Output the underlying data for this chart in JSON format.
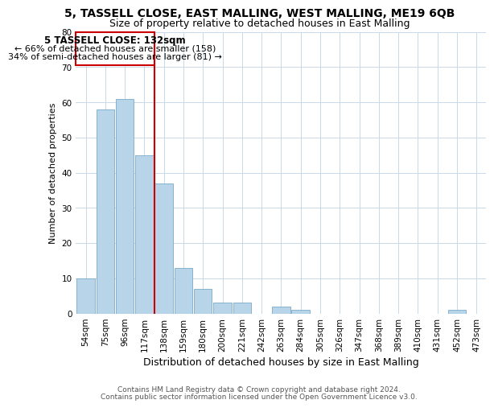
{
  "title": "5, TASSELL CLOSE, EAST MALLING, WEST MALLING, ME19 6QB",
  "subtitle": "Size of property relative to detached houses in East Malling",
  "xlabel": "Distribution of detached houses by size in East Malling",
  "ylabel": "Number of detached properties",
  "bar_labels": [
    "54sqm",
    "75sqm",
    "96sqm",
    "117sqm",
    "138sqm",
    "159sqm",
    "180sqm",
    "200sqm",
    "221sqm",
    "242sqm",
    "263sqm",
    "284sqm",
    "305sqm",
    "326sqm",
    "347sqm",
    "368sqm",
    "389sqm",
    "410sqm",
    "431sqm",
    "452sqm",
    "473sqm"
  ],
  "bar_heights": [
    10,
    58,
    61,
    45,
    37,
    13,
    7,
    3,
    3,
    0,
    2,
    1,
    0,
    0,
    0,
    0,
    0,
    0,
    0,
    1,
    0
  ],
  "bar_color": "#b8d4e8",
  "bar_edge_color": "#7aaac8",
  "background_color": "#ffffff",
  "grid_color": "#c8d8e8",
  "annotation_title": "5 TASSELL CLOSE: 132sqm",
  "annotation_line1": "← 66% of detached houses are smaller (158)",
  "annotation_line2": "34% of semi-detached houses are larger (81) →",
  "annotation_box_edge_color": "#cc0000",
  "ylim": [
    0,
    80
  ],
  "yticks": [
    0,
    10,
    20,
    30,
    40,
    50,
    60,
    70,
    80
  ],
  "ref_line_color": "#cc0000",
  "title_fontsize": 10,
  "subtitle_fontsize": 9,
  "xlabel_fontsize": 9,
  "ylabel_fontsize": 8,
  "tick_fontsize": 7.5,
  "annot_title_fontsize": 8.5,
  "annot_text_fontsize": 8,
  "footnote_fontsize": 6.5,
  "footnote1": "Contains HM Land Registry data © Crown copyright and database right 2024.",
  "footnote2": "Contains public sector information licensed under the Open Government Licence v3.0."
}
